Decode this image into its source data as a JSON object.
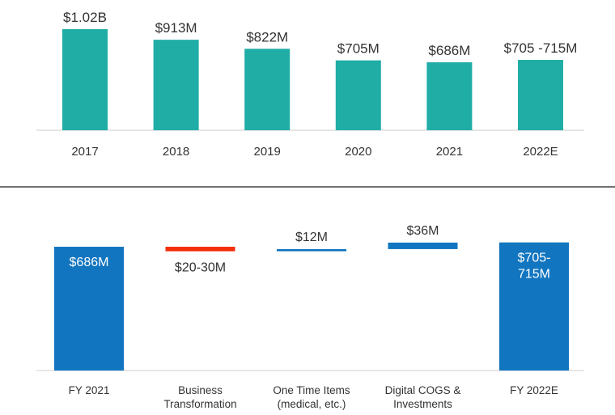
{
  "chart_data": [
    {
      "type": "bar",
      "categories": [
        "2017",
        "2018",
        "2019",
        "2020",
        "2021",
        "2022E"
      ],
      "values": [
        1020,
        913,
        822,
        705,
        686,
        710
      ],
      "value_labels": [
        "$1.02B",
        "$913M",
        "$822M",
        "$705M",
        "$686M",
        "$705 -715M"
      ],
      "color": "#1fada6"
    },
    {
      "type": "waterfall",
      "categories": [
        "FY 2021",
        "Business Transformation",
        "One Time Items (medical, etc.)",
        "Digital COGS & Investments",
        "FY 2022E"
      ],
      "values": [
        686,
        -25,
        12,
        36,
        710
      ],
      "value_labels": [
        "$686M",
        "$20-30M",
        "$12M",
        "$36M",
        "$705-715M"
      ],
      "totals": [
        true,
        false,
        false,
        false,
        true
      ],
      "color": "#1275c0",
      "decrease_color": "#f42d0b"
    }
  ]
}
